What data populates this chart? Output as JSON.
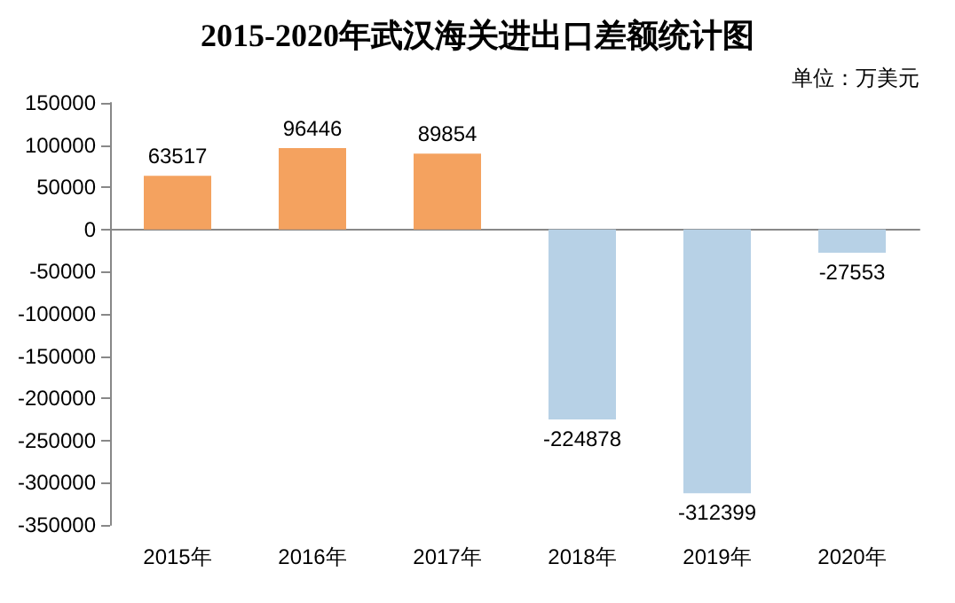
{
  "chart_data": {
    "type": "bar",
    "title": "2015-2020年武汉海关进出口差额统计图",
    "annotations": [
      "单位：万美元"
    ],
    "categories": [
      "2015年",
      "2016年",
      "2017年",
      "2018年",
      "2019年",
      "2020年"
    ],
    "values": [
      63517,
      96446,
      89854,
      -224878,
      -312399,
      -27553
    ],
    "colors": [
      "#f4a25f",
      "#f4a25f",
      "#f4a25f",
      "#b7d1e6",
      "#b7d1e6",
      "#b7d1e6"
    ],
    "ylim": [
      -350000,
      150000
    ],
    "yticks": [
      -350000,
      -300000,
      -250000,
      -200000,
      -150000,
      -100000,
      -50000,
      0,
      50000,
      100000,
      150000
    ],
    "data_labels": true
  }
}
